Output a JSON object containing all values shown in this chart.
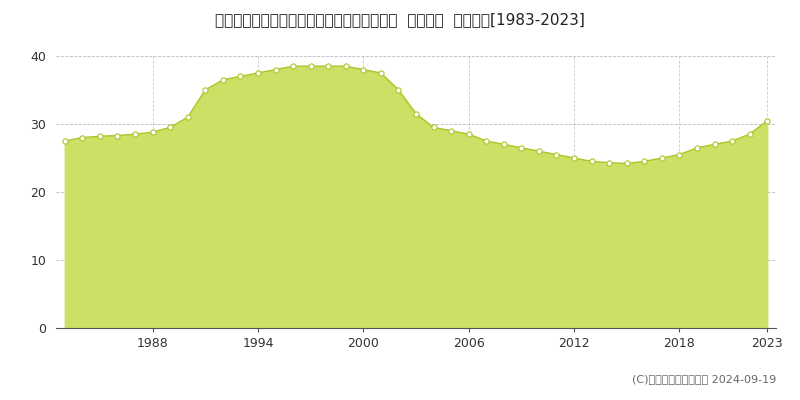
{
  "title": "福岡県久留米市西町字北鞍打の二８９５番１  公示地価  地価推移[1983-2023]",
  "years": [
    1983,
    1984,
    1985,
    1986,
    1987,
    1988,
    1989,
    1990,
    1991,
    1992,
    1993,
    1994,
    1995,
    1996,
    1997,
    1998,
    1999,
    2000,
    2001,
    2002,
    2003,
    2004,
    2005,
    2006,
    2007,
    2008,
    2009,
    2010,
    2011,
    2012,
    2013,
    2014,
    2015,
    2016,
    2017,
    2018,
    2019,
    2020,
    2021,
    2022,
    2023
  ],
  "values": [
    27.5,
    28.0,
    28.2,
    28.3,
    28.5,
    28.8,
    29.5,
    31.0,
    35.0,
    36.5,
    37.0,
    37.5,
    38.0,
    38.5,
    38.5,
    38.5,
    38.5,
    38.0,
    37.5,
    35.0,
    31.5,
    29.5,
    29.0,
    28.5,
    27.5,
    27.0,
    26.5,
    26.0,
    25.5,
    25.0,
    24.5,
    24.3,
    24.2,
    24.5,
    25.0,
    25.5,
    26.5,
    27.0,
    27.5,
    28.5,
    30.5
  ],
  "line_color": "#a8c828",
  "fill_color": "#cce066",
  "marker_facecolor": "#ffffff",
  "marker_edgecolor": "#a8c828",
  "bg_color": "#ffffff",
  "grid_h_color": "#bbbbbb",
  "grid_v_color": "#cccccc",
  "ylim": [
    0,
    40
  ],
  "yticks": [
    0,
    10,
    20,
    30,
    40
  ],
  "xticks": [
    1988,
    1994,
    2000,
    2006,
    2012,
    2018,
    2023
  ],
  "copyright": "(C)土地価格ドットコム 2024-09-19",
  "title_fontsize": 11,
  "tick_fontsize": 9,
  "legend_fontsize": 9,
  "copyright_fontsize": 8
}
